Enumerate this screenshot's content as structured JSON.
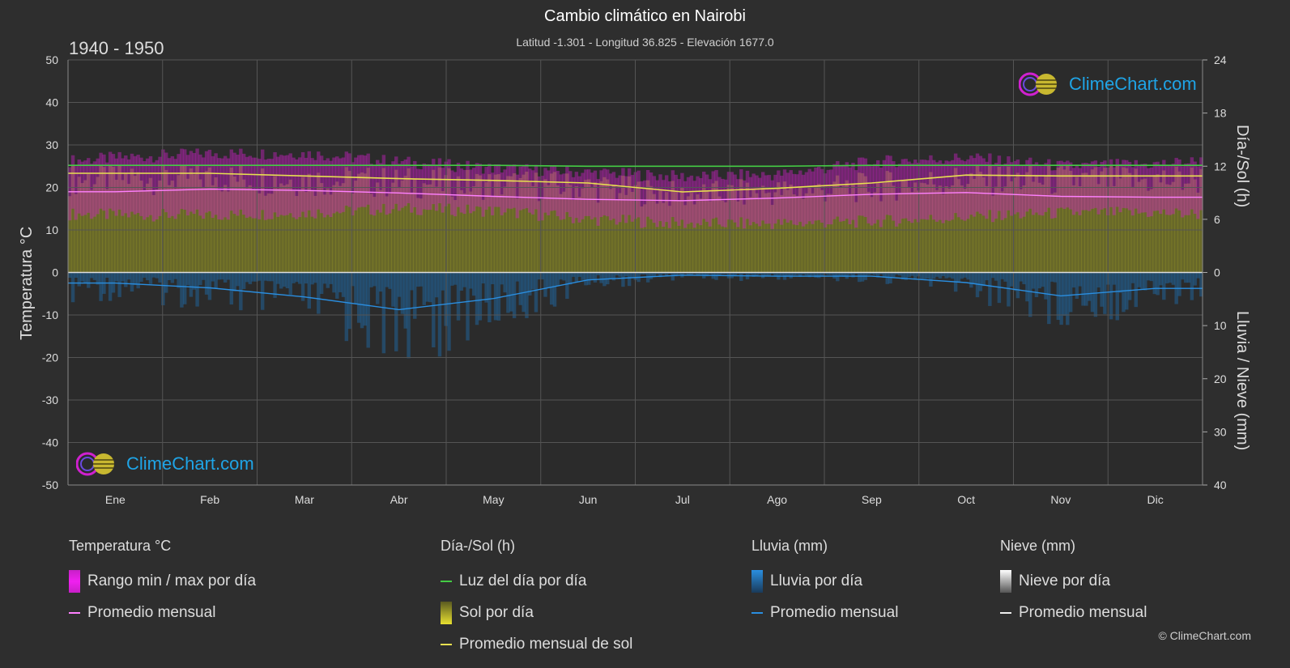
{
  "header": {
    "title": "Cambio climático en Nairobi",
    "subtitle": "Latitud -1.301 - Longitud 36.825 - Elevación 1677.0",
    "period": "1940 - 1950"
  },
  "axes": {
    "left_label": "Temperatura °C",
    "right_top_label": "Día-/Sol (h)",
    "right_bottom_label": "Lluvia / Nieve (mm)"
  },
  "logo": {
    "text": "ClimeChart.com"
  },
  "legend": {
    "temperature": {
      "title": "Temperatura °C",
      "range": "Rango min / max por día",
      "avg": "Promedio mensual"
    },
    "daysun": {
      "title": "Día-/Sol (h)",
      "daylight": "Luz del día por día",
      "sun": "Sol por día",
      "sun_avg": "Promedio mensual de sol"
    },
    "rain": {
      "title": "Lluvia (mm)",
      "daily": "Lluvia por día",
      "avg": "Promedio mensual"
    },
    "snow": {
      "title": "Nieve (mm)",
      "daily": "Nieve por día",
      "avg": "Promedio mensual"
    }
  },
  "copyright": "© ClimeChart.com",
  "colors": {
    "background": "#2e2e2e",
    "grid": "#555555",
    "temp_range": "#d020c8",
    "temp_avg": "#ff80ff",
    "daylight": "#44cc44",
    "sun_fill": "#9a9a28",
    "sun_avg": "#e8e050",
    "rain": "#1f6fb0",
    "rain_avg": "#2a8ee0",
    "snow": "#cccccc"
  },
  "chart_data": {
    "type": "area",
    "months": [
      "Ene",
      "Feb",
      "Mar",
      "Abr",
      "May",
      "Jun",
      "Jul",
      "Ago",
      "Sep",
      "Oct",
      "Nov",
      "Dic"
    ],
    "left_axis": {
      "label": "Temperatura °C",
      "range": [
        -50,
        50
      ],
      "ticks": [
        50,
        40,
        30,
        20,
        10,
        0,
        -10,
        -20,
        -30,
        -40,
        -50
      ]
    },
    "right_axis_top": {
      "label": "Día-/Sol (h)",
      "range": [
        0,
        24
      ],
      "ticks": [
        24,
        18,
        12,
        6,
        0
      ]
    },
    "right_axis_bottom": {
      "label": "Lluvia / Nieve (mm)",
      "range": [
        0,
        40
      ],
      "ticks": [
        0,
        10,
        20,
        30,
        40
      ]
    },
    "series": [
      {
        "name": "Luz del día por día",
        "unit": "h",
        "values": [
          12.1,
          12.1,
          12.1,
          12.1,
          12.1,
          12.0,
          12.0,
          12.0,
          12.1,
          12.1,
          12.1,
          12.1
        ]
      },
      {
        "name": "Promedio mensual de sol",
        "unit": "h",
        "values": [
          11.2,
          11.2,
          10.9,
          10.6,
          10.4,
          10.1,
          9.1,
          9.5,
          10.1,
          11.0,
          10.9,
          10.9
        ]
      },
      {
        "name": "Promedio mensual",
        "unit": "°C",
        "values": [
          19.0,
          19.6,
          19.3,
          18.7,
          17.9,
          17.2,
          16.9,
          17.5,
          18.4,
          18.8,
          17.9,
          17.7
        ]
      },
      {
        "name": "Rango min / max por día (max)",
        "unit": "°C",
        "values": [
          27.0,
          28.0,
          28.0,
          26.0,
          24.5,
          23.5,
          22.5,
          23.0,
          26.0,
          27.0,
          25.0,
          25.5
        ]
      },
      {
        "name": "Rango min / max por día (min)",
        "unit": "°C",
        "values": [
          13.5,
          13.5,
          14.0,
          15.0,
          14.5,
          12.5,
          11.5,
          11.5,
          12.0,
          13.0,
          14.0,
          14.0
        ]
      },
      {
        "name": "Lluvia promedio mensual",
        "unit": "mm",
        "values": [
          2.0,
          2.9,
          4.6,
          7.0,
          4.9,
          1.4,
          0.5,
          0.7,
          0.7,
          1.9,
          4.4,
          3.0
        ]
      },
      {
        "name": "Nieve promedio mensual",
        "unit": "mm",
        "values": [
          0,
          0,
          0,
          0,
          0,
          0,
          0,
          0,
          0,
          0,
          0,
          0
        ]
      }
    ],
    "grid": true,
    "legend_position": "bottom"
  }
}
